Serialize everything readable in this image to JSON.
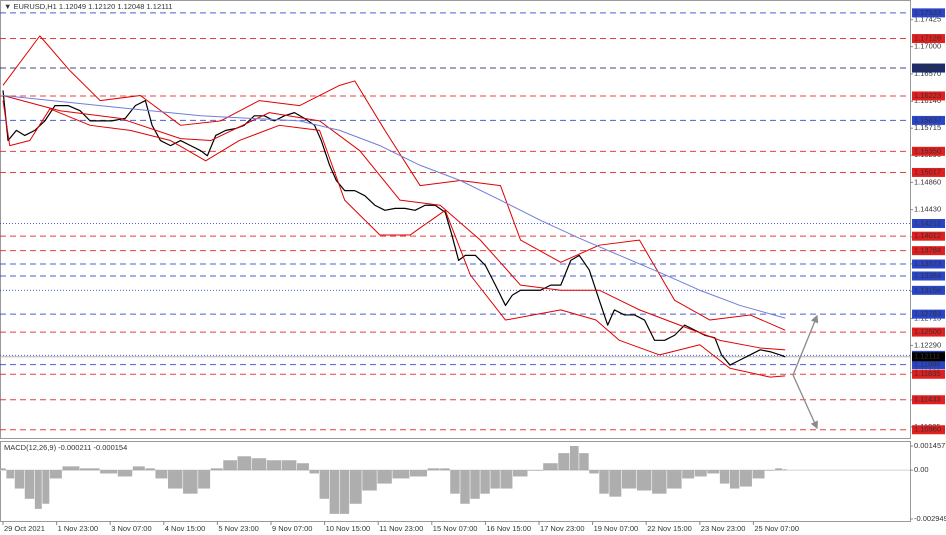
{
  "chart_data": [
    {
      "type": "line",
      "title": "▼ EURUSD,H1 1.12049 1.12120 1.12048 1.12111",
      "xlim": [
        -1.8,
        541.5
      ],
      "ylim": [
        1.1083,
        1.1772
      ],
      "yticks": [
        1.17425,
        {
          "value": 1.17,
          "label": "1.17000"
        },
        {
          "value": 1.1657,
          "label": "1.16570"
        },
        {
          "value": 1.1614,
          "label": "1.16140"
        },
        1.15715,
        {
          "value": 1.1529,
          "label": "1.15290"
        },
        {
          "value": 1.1486,
          "label": "1.14860"
        },
        {
          "value": 1.1443,
          "label": "1.14430"
        },
        {
          "value": 1.14,
          "label": "1.14000"
        },
        1.13575,
        1.13145,
        1.12715,
        {
          "value": 1.1229,
          "label": "1.12290"
        },
        {
          "value": 1.1186,
          "label": "1.11860"
        },
        {
          "value": 1.1143,
          "label": "1.11430"
        },
        1.11005
      ],
      "series": [
        {
          "color": "#000000",
          "width": 1.2,
          "x": [
            0,
            3,
            8,
            13,
            19,
            25,
            31,
            39,
            46,
            52,
            58,
            65,
            73,
            79,
            85,
            89,
            94,
            100,
            106,
            112,
            118,
            122,
            127,
            133,
            139,
            144,
            150,
            156,
            162,
            168,
            174,
            180,
            186,
            190,
            195,
            199,
            204,
            210,
            216,
            222,
            228,
            234,
            240,
            246,
            252,
            258,
            264,
            268,
            272,
            276,
            282,
            288,
            294,
            300,
            304,
            309,
            315,
            321,
            327,
            333,
            339,
            344,
            350,
            356,
            361,
            365,
            371,
            377,
            383,
            389,
            395,
            401,
            407,
            413,
            419,
            425,
            429,
            434,
            440,
            446,
            452,
            458,
            464,
            467
          ],
          "values": [
            1.1631,
            1.1552,
            1.1568,
            1.156,
            1.1568,
            1.1583,
            1.1607,
            1.1607,
            1.1599,
            1.1583,
            1.1583,
            1.1583,
            1.1587,
            1.1607,
            1.1615,
            1.1576,
            1.1552,
            1.1544,
            1.1552,
            1.1544,
            1.1536,
            1.1528,
            1.156,
            1.1568,
            1.1571,
            1.1576,
            1.1591,
            1.1591,
            1.1583,
            1.1591,
            1.1596,
            1.1587,
            1.1576,
            1.1552,
            1.1513,
            1.1489,
            1.1473,
            1.1473,
            1.1465,
            1.145,
            1.1442,
            1.1445,
            1.1445,
            1.1442,
            1.145,
            1.145,
            1.1439,
            1.1403,
            1.1363,
            1.1371,
            1.1371,
            1.1355,
            1.1324,
            1.1292,
            1.1308,
            1.1316,
            1.1316,
            1.1316,
            1.1324,
            1.1324,
            1.1363,
            1.1371,
            1.1348,
            1.13,
            1.1261,
            1.1285,
            1.1277,
            1.1277,
            1.1269,
            1.1237,
            1.1237,
            1.1245,
            1.1261,
            1.1253,
            1.1245,
            1.1241,
            1.1214,
            1.1198,
            1.1206,
            1.1214,
            1.1222,
            1.1219,
            1.1214,
            1.1211
          ]
        },
        {
          "color": "#e00000",
          "width": 1,
          "x": [
            0,
            22,
            40,
            58,
            82,
            106,
            130,
            153,
            177,
            201,
            210,
            228,
            249,
            273,
            297,
            309,
            333,
            356,
            380,
            401,
            422,
            446,
            467
          ],
          "values": [
            1.1639,
            1.1717,
            1.1662,
            1.1615,
            1.1623,
            1.1576,
            1.1583,
            1.1615,
            1.1607,
            1.1639,
            1.1646,
            1.1568,
            1.1481,
            1.1489,
            1.1481,
            1.1395,
            1.136,
            1.1387,
            1.1395,
            1.13,
            1.1269,
            1.1277,
            1.1253
          ]
        },
        {
          "color": "#e00000",
          "width": 1,
          "x": [
            0,
            34,
            70,
            106,
            124,
            159,
            189,
            213,
            237,
            261,
            285,
            309,
            333,
            356,
            380,
            404,
            428,
            452,
            467
          ],
          "values": [
            1.1623,
            1.1599,
            1.1587,
            1.1555,
            1.1552,
            1.1596,
            1.1583,
            1.1536,
            1.1458,
            1.145,
            1.1395,
            1.1324,
            1.1316,
            1.1316,
            1.1285,
            1.1261,
            1.1237,
            1.1225,
            1.1222
          ]
        },
        {
          "color": "#e00000",
          "width": 1,
          "x": [
            0,
            4,
            16,
            28,
            52,
            76,
            100,
            121,
            141,
            165,
            189,
            204,
            225,
            243,
            264,
            279,
            300,
            333,
            354,
            368,
            392,
            416,
            434,
            458,
            467
          ],
          "values": [
            1.1615,
            1.1544,
            1.1552,
            1.1602,
            1.1576,
            1.1568,
            1.1552,
            1.152,
            1.1552,
            1.1576,
            1.1568,
            1.1458,
            1.1403,
            1.1403,
            1.1442,
            1.134,
            1.1269,
            1.1285,
            1.1269,
            1.1237,
            1.1214,
            1.123,
            1.1193,
            1.1179,
            1.1181
          ]
        },
        {
          "color": "#6f7fd8",
          "width": 1,
          "x": [
            0,
            58,
            118,
            177,
            201,
            225,
            249,
            273,
            297,
            321,
            344,
            368,
            392,
            416,
            440,
            467
          ],
          "values": [
            1.1623,
            1.1607,
            1.1591,
            1.1583,
            1.1568,
            1.1544,
            1.1513,
            1.1489,
            1.1458,
            1.1426,
            1.1398,
            1.1371,
            1.1344,
            1.1316,
            1.1292,
            1.1272
          ]
        }
      ],
      "levels": [
        {
          "value": 1.17533,
          "color": "#2b45c8",
          "style": "dash"
        },
        {
          "value": 1.17128,
          "color": "#e02020",
          "style": "dash"
        },
        {
          "value": 1.16663,
          "color": "#1c2a6e",
          "style": "dash"
        },
        {
          "value": 1.16223,
          "color": "#e02020",
          "style": "dash"
        },
        {
          "value": 1.15837,
          "color": "#2b45c8",
          "style": "dash"
        },
        {
          "value": 1.1535,
          "label": "1.15350",
          "color": "#e02020",
          "style": "dash"
        },
        {
          "value": 1.15017,
          "color": "#e02020",
          "style": "dash"
        },
        {
          "value": 1.14212,
          "color": "#2b45c8",
          "style": "dot"
        },
        {
          "value": 1.14012,
          "color": "#e02020",
          "style": "dash"
        },
        {
          "value": 1.13784,
          "color": "#e02020",
          "style": "dash"
        },
        {
          "value": 1.13573,
          "color": "#2b45c8",
          "style": "dash"
        },
        {
          "value": 1.13384,
          "color": "#2b45c8",
          "style": "dash"
        },
        {
          "value": 1.13158,
          "color": "#2b45c8",
          "style": "dot"
        },
        {
          "value": 1.12783,
          "color": "#2b45c8",
          "style": "dash"
        },
        {
          "value": 1.125,
          "label": "1.12500",
          "color": "#e02020",
          "style": "dash"
        },
        {
          "value": 1.12133,
          "color": "#2b45c8",
          "style": "dot"
        },
        {
          "value": 1.11986,
          "color": "#2b45c8",
          "style": "dash"
        },
        {
          "value": 1.11835,
          "color": "#e02020",
          "style": "dash"
        },
        {
          "value": 1.11433,
          "color": "#e02020",
          "style": "dash"
        },
        {
          "value": 1.1096,
          "label": "1.10960",
          "color": "#e02020",
          "style": "dash"
        }
      ],
      "last": {
        "value": 1.12111,
        "color": "#000000"
      }
    },
    {
      "type": "bar",
      "title": "MACD(12,26,9) -0.000211 -0.000154",
      "color": "#9a9a9a",
      "xlim": [
        -1.8,
        541.5
      ],
      "ylim": [
        -0.003071,
        0.001702
      ],
      "yticks": [
        0.001457,
        {
          "value": 0,
          "label": "0.00"
        },
        -0.002949
      ],
      "xticks": [
        {
          "value": 0,
          "label": "29 Oct 2021"
        },
        {
          "value": 32,
          "label": "1 Nov 23:00"
        },
        {
          "value": 64,
          "label": "3 Nov 07:00"
        },
        {
          "value": 96,
          "label": "4 Nov 15:00"
        },
        {
          "value": 128,
          "label": "5 Nov 23:00"
        },
        {
          "value": 160,
          "label": "9 Nov 07:00"
        },
        {
          "value": 192,
          "label": "10 Nov 15:00"
        },
        {
          "value": 224,
          "label": "11 Nov 23:00"
        },
        {
          "value": 256,
          "label": "15 Nov 07:00"
        },
        {
          "value": 288,
          "label": "16 Nov 15:00"
        },
        {
          "value": 320,
          "label": "17 Nov 23:00"
        },
        {
          "value": 352,
          "label": "19 Nov 07:00"
        },
        {
          "value": 384,
          "label": "22 Nov 15:00"
        },
        {
          "value": 416,
          "label": "23 Nov 23:00"
        },
        {
          "value": 448,
          "label": "25 Nov 07:00"
        }
      ],
      "x": [
        0,
        4,
        10,
        16,
        22,
        25,
        31,
        40,
        52,
        64,
        73,
        82,
        88,
        94,
        103,
        112,
        121,
        127,
        136,
        144,
        153,
        162,
        171,
        180,
        186,
        192,
        198,
        204,
        210,
        219,
        228,
        237,
        249,
        258,
        264,
        270,
        276,
        282,
        288,
        294,
        300,
        309,
        318,
        327,
        336,
        341,
        347,
        353,
        359,
        365,
        374,
        383,
        392,
        401,
        410,
        416,
        425,
        431,
        437,
        443,
        452,
        458,
        464,
        467
      ],
      "values": [
        0.00011,
        -0.0005,
        -0.00111,
        -0.00173,
        -0.00234,
        -0.00203,
        -0.0005,
        0.00023,
        0.00011,
        -0.0002,
        -0.00038,
        0.00023,
        0.00011,
        -0.0005,
        -0.00111,
        -0.00142,
        -0.00111,
        0.00011,
        0.0006,
        0.00084,
        0.00072,
        0.0006,
        0.0006,
        0.00042,
        -0.0002,
        -0.00173,
        -0.00264,
        -0.00264,
        -0.00203,
        -0.00123,
        -0.00081,
        -0.0005,
        -0.00038,
        0.00011,
        0.00011,
        -0.00142,
        -0.00203,
        -0.00173,
        -0.00142,
        -0.00111,
        -0.00111,
        -0.00038,
        -1e-05,
        0.00042,
        0.00103,
        0.00146,
        0.00103,
        -0.0002,
        -0.00142,
        -0.0016,
        -0.00111,
        -0.00123,
        -0.00142,
        -0.00111,
        -0.0005,
        -0.00038,
        -0.0002,
        -0.00081,
        -0.00111,
        -0.00099,
        -0.0005,
        -1e-05,
        0.00011,
        5e-05
      ]
    }
  ]
}
